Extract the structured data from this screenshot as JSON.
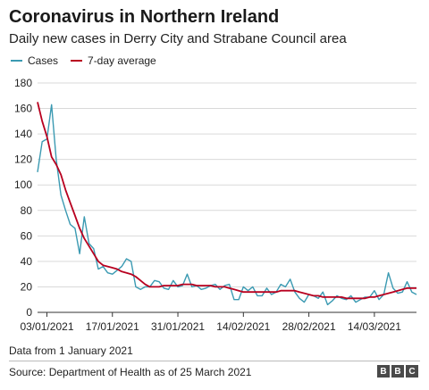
{
  "chart_data": {
    "type": "line",
    "title": "Coronavirus in Northern Ireland",
    "subtitle": "Daily new cases in Derry City and Strabane Council area",
    "xlabel": "",
    "ylabel": "",
    "ylim": [
      0,
      180
    ],
    "yticks": [
      0,
      20,
      40,
      60,
      80,
      100,
      120,
      140,
      160,
      180
    ],
    "xticks": [
      "03/01/2021",
      "17/01/2021",
      "31/01/2021",
      "14/02/2021",
      "28/02/2021",
      "14/03/2021"
    ],
    "grid": true,
    "legend": "top-left",
    "x_start": "03/01/2021",
    "series": [
      {
        "name": "Cases",
        "color": "#3b9ab2",
        "values": [
          110,
          134,
          136,
          163,
          120,
          92,
          80,
          69,
          66,
          46,
          75,
          54,
          50,
          34,
          36,
          31,
          30,
          33,
          36,
          42,
          40,
          20,
          18,
          20,
          20,
          25,
          24,
          19,
          18,
          25,
          20,
          21,
          30,
          20,
          21,
          18,
          19,
          21,
          22,
          18,
          21,
          22,
          10,
          10,
          20,
          17,
          20,
          13,
          13,
          19,
          14,
          16,
          22,
          20,
          26,
          16,
          11,
          8,
          14,
          13,
          11,
          16,
          6,
          9,
          13,
          11,
          10,
          13,
          8,
          10,
          12,
          12,
          17,
          10,
          14,
          31,
          19,
          15,
          16,
          24,
          16,
          14
        ]
      },
      {
        "name": "7-day average",
        "color": "#b8001f",
        "values": [
          165,
          150,
          138,
          122,
          116,
          108,
          96,
          86,
          76,
          66,
          58,
          52,
          46,
          40,
          37,
          36,
          35,
          34,
          32,
          31,
          30,
          28,
          25,
          22,
          20,
          20,
          20,
          21,
          21,
          21,
          21,
          22,
          22,
          22,
          21,
          21,
          21,
          21,
          20,
          20,
          20,
          19,
          18,
          17,
          16,
          16,
          16,
          16,
          16,
          16,
          16,
          16,
          17,
          17,
          17,
          17,
          16,
          15,
          14,
          13,
          13,
          12,
          12,
          12,
          12,
          12,
          11,
          11,
          11,
          11,
          11,
          12,
          12,
          13,
          14,
          15,
          16,
          17,
          18,
          19,
          19,
          19
        ]
      }
    ]
  },
  "note": "Data from 1 January 2021",
  "source": "Source: Department of Health as of 25 March 2021",
  "logo": [
    "B",
    "B",
    "C"
  ]
}
